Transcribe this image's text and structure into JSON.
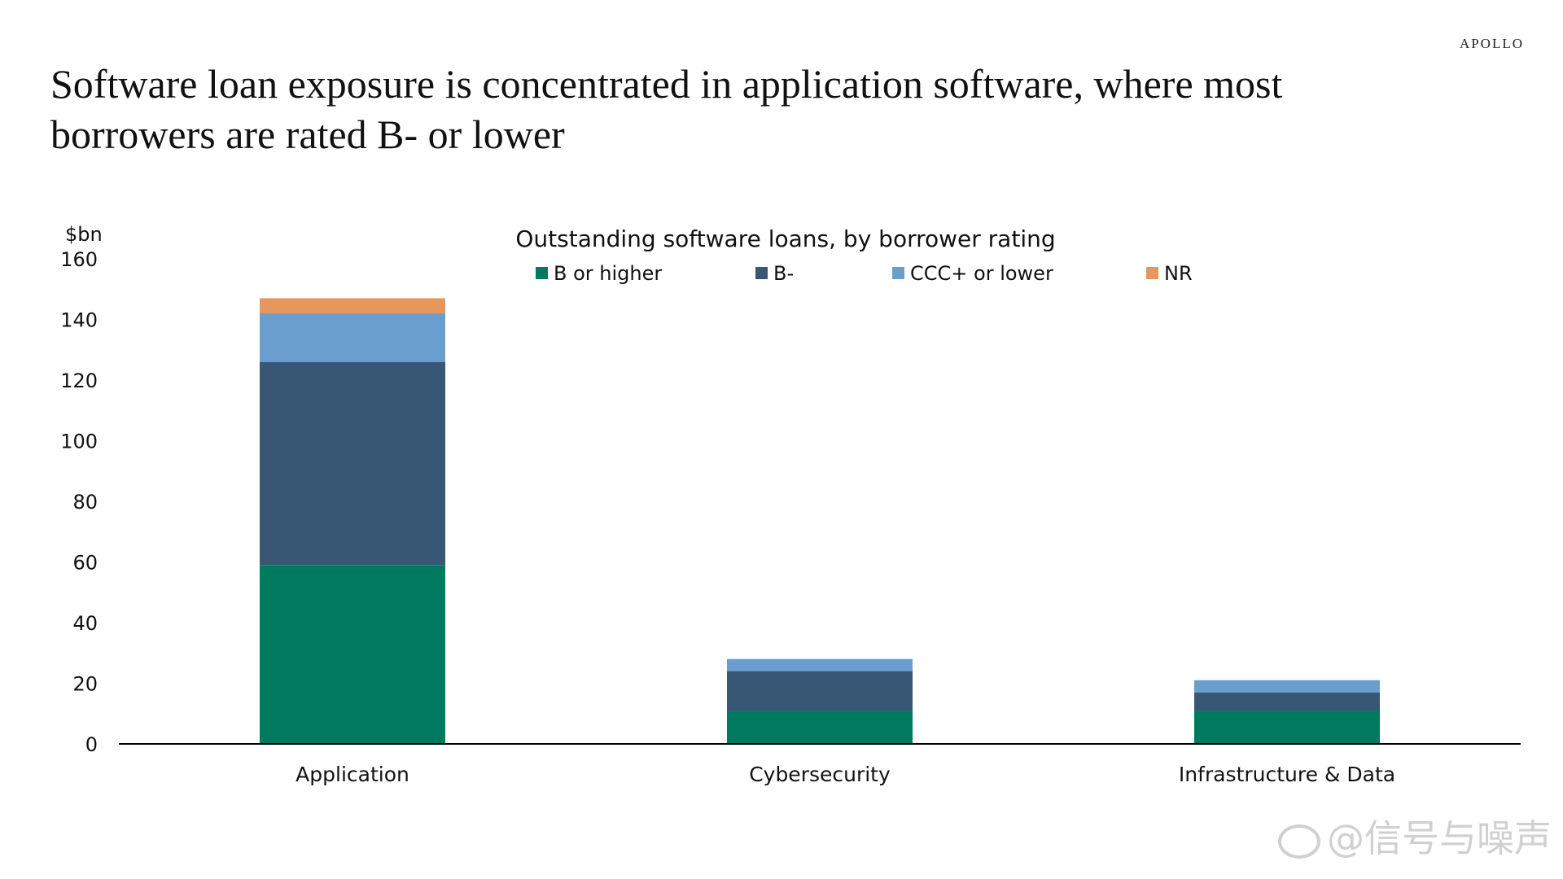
{
  "brand": "APOLLO",
  "slide_title": "Software loan exposure is concentrated in application software, where most borrowers are rated B- or lower",
  "watermark": "@信号与噪声",
  "colors": {
    "b_or_higher": "#007a5e",
    "b_minus": "#385775",
    "ccc_or_lower": "#6a9ecf",
    "nr": "#e6975e",
    "axis": "#000000"
  },
  "chart_data": {
    "type": "bar",
    "stacked": true,
    "title": "Outstanding software loans, by borrower rating",
    "unit_label": "$bn",
    "categories": [
      "Application",
      "Cybersecurity",
      "Infrastructure & Data"
    ],
    "series": [
      {
        "name": "B or higher",
        "values": [
          59,
          11,
          11
        ]
      },
      {
        "name": "B-",
        "values": [
          67,
          13,
          6
        ]
      },
      {
        "name": "CCC+ or lower",
        "values": [
          16,
          4,
          4
        ]
      },
      {
        "name": "NR",
        "values": [
          5,
          0,
          0
        ]
      }
    ],
    "ylim": [
      0,
      160
    ],
    "yticks": [
      0,
      20,
      40,
      60,
      80,
      100,
      120,
      140,
      160
    ],
    "grid": false,
    "legend_position": "top"
  }
}
